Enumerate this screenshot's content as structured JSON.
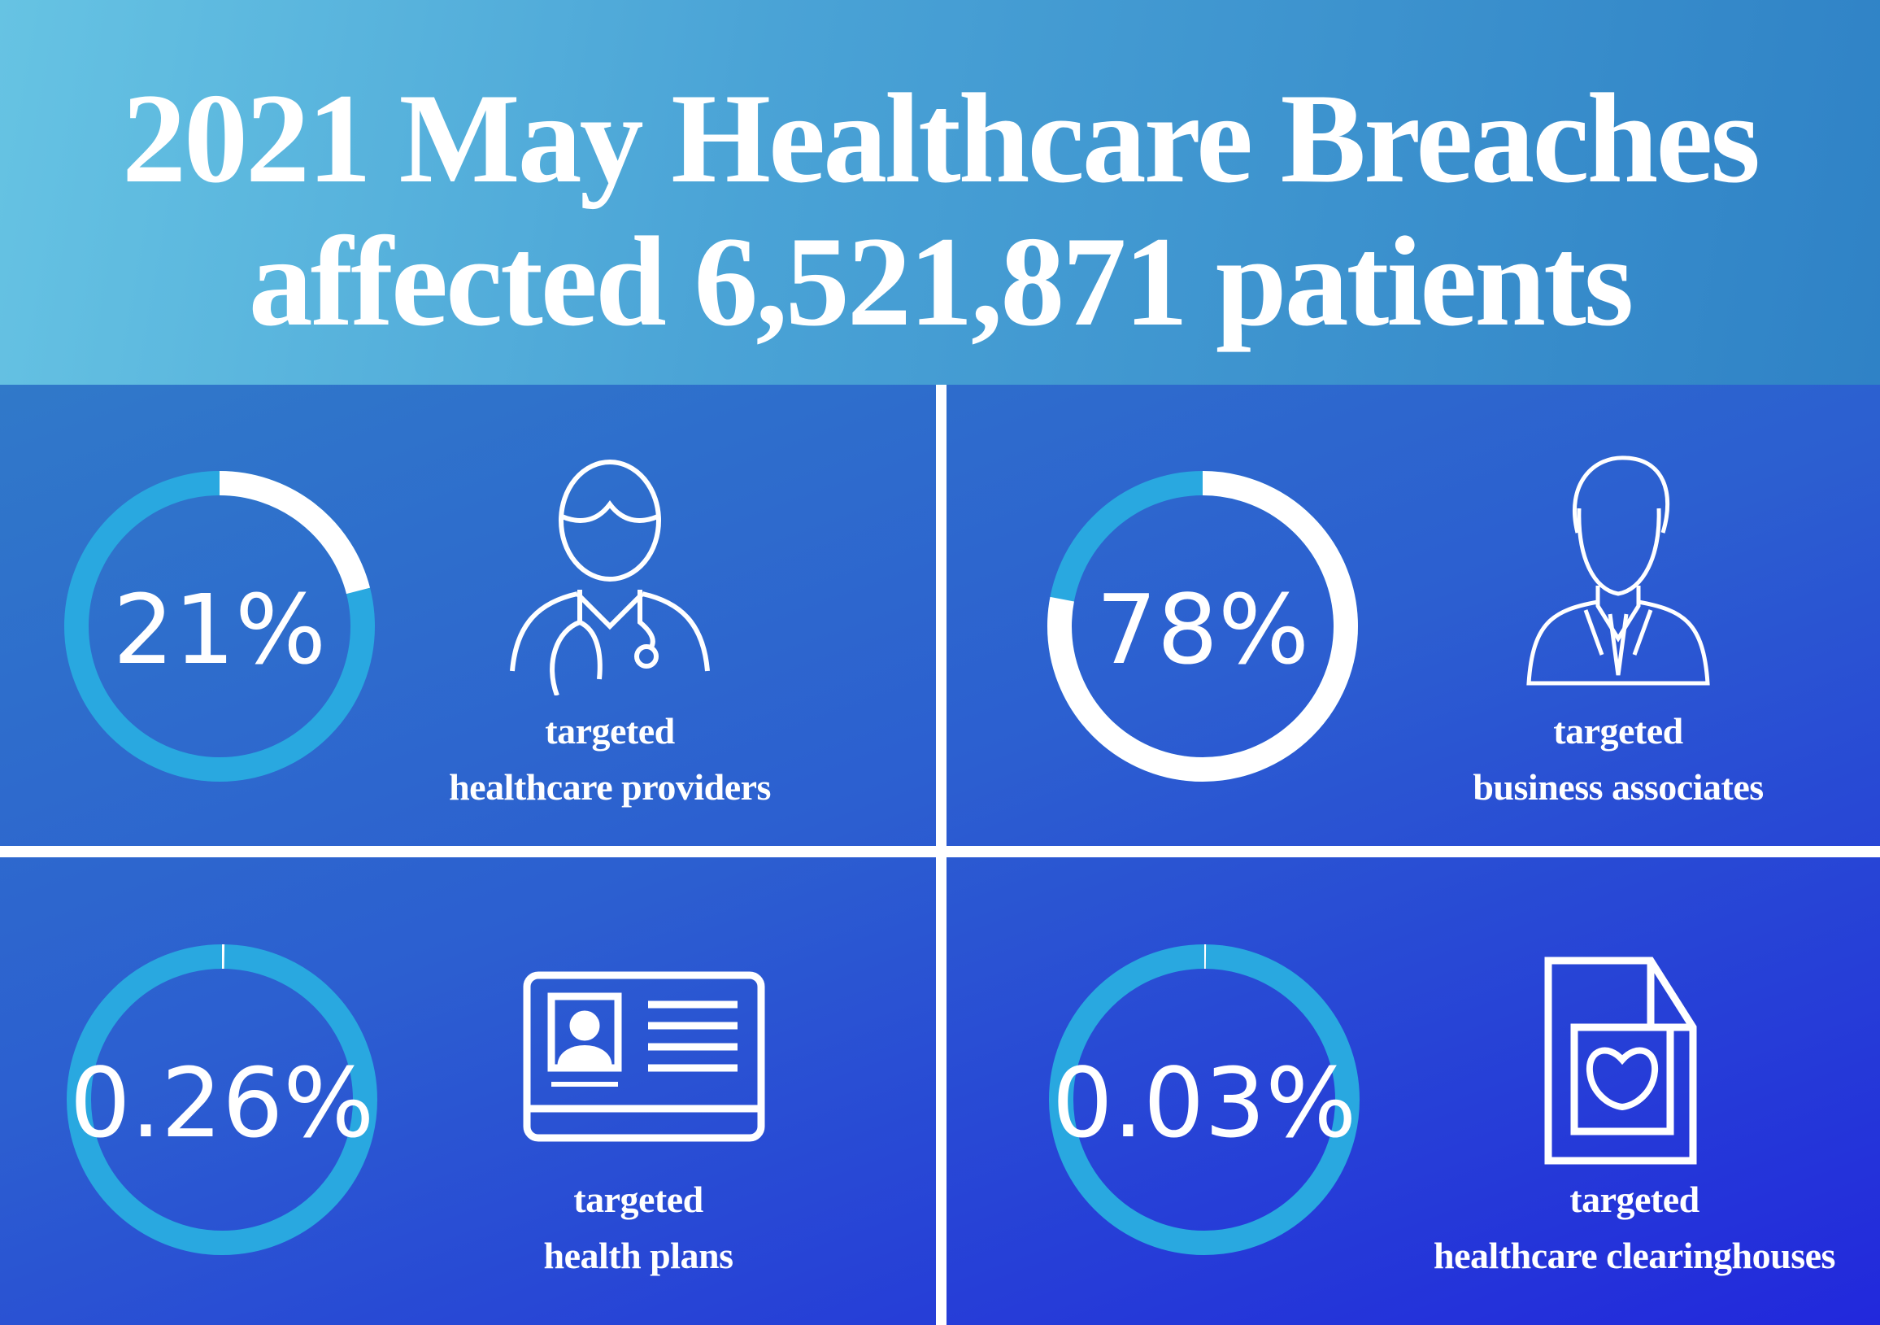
{
  "header": {
    "title_line1": "2021 May Healthcare Breaches",
    "title_line2": "affected 6,521,871 patients"
  },
  "colors": {
    "ring_track": "#29a8e0",
    "ring_fill": "#ffffff",
    "divider": "#ffffff"
  },
  "stats": [
    {
      "percent_label": "21%",
      "value": 21,
      "line1": "targeted",
      "line2": "healthcare providers",
      "icon": "doctor-icon"
    },
    {
      "percent_label": "78%",
      "value": 78,
      "line1": "targeted",
      "line2": "business associates",
      "icon": "businessman-icon"
    },
    {
      "percent_label": "0.26%",
      "value": 0.26,
      "line1": "targeted",
      "line2": "health plans",
      "icon": "id-card-icon"
    },
    {
      "percent_label": "0.03%",
      "value": 0.03,
      "line1": "targeted",
      "line2": "healthcare clearinghouses",
      "icon": "medical-document-icon"
    }
  ]
}
